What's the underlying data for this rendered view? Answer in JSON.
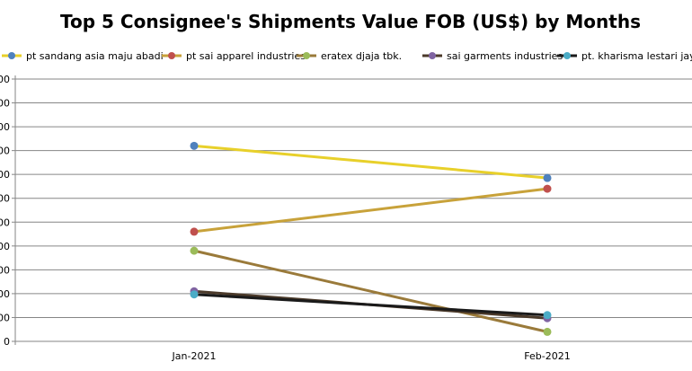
{
  "chart_data": {
    "type": "line",
    "title": "Top 5 Consignee's Shipments Value FOB (US$) by Months",
    "xlabel": "",
    "ylabel": "",
    "categories": [
      "Jan-2021",
      "Feb-2021"
    ],
    "y_ticks": [
      "0",
      "00",
      "00",
      "00",
      "00",
      "00",
      "00",
      "00",
      "00",
      "00",
      "00",
      "00"
    ],
    "ylim": [
      0,
      11
    ],
    "grid": true,
    "legend_position": "top",
    "series": [
      {
        "name": "pt sandang asia maju abadi",
        "values": [
          8.2,
          6.85
        ],
        "line_color": "#e8d02a",
        "marker_color": "#4f81bd"
      },
      {
        "name": "pt sai apparel industries",
        "values": [
          4.6,
          6.4
        ],
        "line_color": "#c8a23a",
        "marker_color": "#c0504d"
      },
      {
        "name": "eratex djaja tbk.",
        "values": [
          3.8,
          0.4
        ],
        "line_color": "#9a7a3a",
        "marker_color": "#9bbb59"
      },
      {
        "name": "sai garments industries",
        "values": [
          2.1,
          0.97
        ],
        "line_color": "#4b3a2a",
        "marker_color": "#8064a2"
      },
      {
        "name": "pt. kharisma lestari jaya",
        "values": [
          1.97,
          1.1
        ],
        "line_color": "#1a1a1a",
        "marker_color": "#4bacc6"
      }
    ]
  }
}
